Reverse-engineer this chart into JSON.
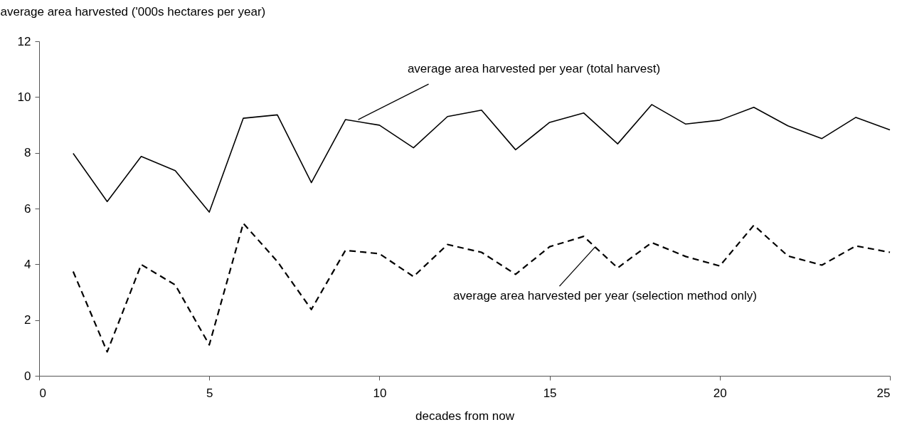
{
  "chart_data": {
    "type": "line",
    "xlabel": "decades from now",
    "ylabel": "average area harvested ('000s hectares per year)",
    "x": [
      1,
      2,
      3,
      4,
      5,
      6,
      7,
      8,
      9,
      10,
      11,
      12,
      13,
      14,
      15,
      16,
      17,
      18,
      19,
      20,
      21,
      22,
      23,
      24,
      25
    ],
    "series": [
      {
        "name": "average area harvested per year (total harvest)",
        "color": "#000000",
        "line_style": "solid",
        "values": [
          7.98,
          6.25,
          7.87,
          7.36,
          5.87,
          9.24,
          9.36,
          6.93,
          9.19,
          8.99,
          8.18,
          9.3,
          9.53,
          8.11,
          9.09,
          9.43,
          8.32,
          9.73,
          9.03,
          9.17,
          9.63,
          8.97,
          8.51,
          9.27,
          8.82
        ]
      },
      {
        "name": "average area harvested per year (selection method only)",
        "color": "#000000",
        "line_style": "dashed",
        "values": [
          3.74,
          0.86,
          3.99,
          3.26,
          1.11,
          5.47,
          4.1,
          2.38,
          4.5,
          4.38,
          3.56,
          4.71,
          4.43,
          3.64,
          4.63,
          5.0,
          3.87,
          4.78,
          4.28,
          3.94,
          5.4,
          4.3,
          3.97,
          4.66,
          4.43
        ]
      }
    ],
    "xlim": [
      0,
      25
    ],
    "xticks": [
      0,
      5,
      10,
      15,
      20,
      25
    ],
    "ylim": [
      0,
      12
    ],
    "yticks": [
      0,
      2,
      4,
      6,
      8,
      10,
      12
    ],
    "grid": false,
    "legend": false,
    "marker": "none"
  }
}
